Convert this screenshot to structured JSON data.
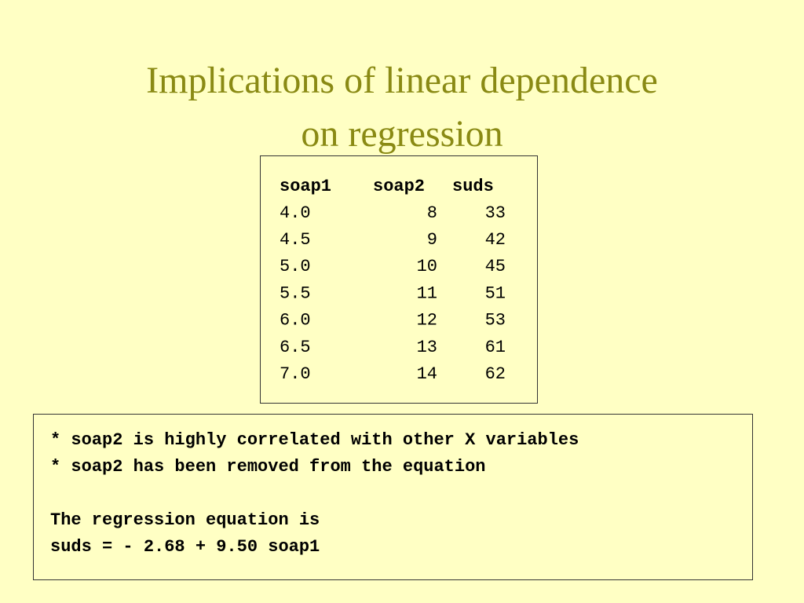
{
  "title": [
    "Implications of linear dependence",
    "on regression"
  ],
  "table": {
    "headers": [
      "soap1",
      "soap2",
      "suds"
    ],
    "rows": [
      [
        "4.0",
        8,
        33
      ],
      [
        "4.5",
        9,
        42
      ],
      [
        "5.0",
        10,
        45
      ],
      [
        "5.5",
        11,
        51
      ],
      [
        "6.0",
        12,
        53
      ],
      [
        "6.5",
        13,
        61
      ],
      [
        "7.0",
        14,
        62
      ]
    ]
  },
  "output": {
    "paragraphs": [
      [
        "* soap2 is highly correlated with other X variables",
        "* soap2 has been removed from the equation"
      ],
      [
        "The regression equation is",
        "suds = - 2.68 + 9.50 soap1"
      ]
    ]
  }
}
